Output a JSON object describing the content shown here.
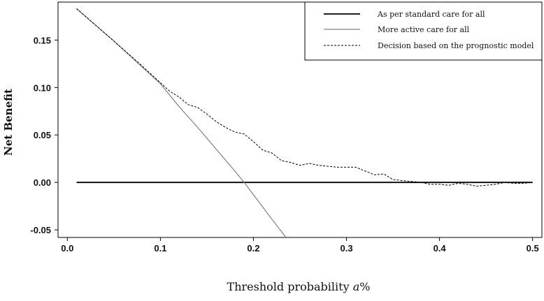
{
  "chart_data": {
    "type": "line",
    "title": "",
    "xlabel": "Threshold probability ",
    "xlabel_italic": "a",
    "xlabel_suffix": "%",
    "ylabel": "Net Benefit",
    "xlim": [
      -0.01,
      0.51
    ],
    "ylim": [
      -0.058,
      0.19
    ],
    "xticks": [
      0.0,
      0.1,
      0.2,
      0.3,
      0.4,
      0.5
    ],
    "xtick_labels": [
      "0.0",
      "0.1",
      "0.2",
      "0.3",
      "0.4",
      "0.5"
    ],
    "yticks": [
      -0.05,
      0.0,
      0.05,
      0.1,
      0.15
    ],
    "ytick_labels": [
      "-0.05",
      "0.00",
      "0.05",
      "0.10",
      "0.15"
    ],
    "grid": false,
    "legend_position": "top-right",
    "series": [
      {
        "name": "As per standard care for all",
        "style": "solid",
        "color": "#000000",
        "x": [
          0.01,
          0.5
        ],
        "y": [
          0.0,
          0.0
        ]
      },
      {
        "name": "More active care for all",
        "style": "solid",
        "color": "#808080",
        "x": [
          0.01,
          0.05,
          0.08,
          0.1,
          0.12,
          0.14,
          0.16,
          0.18,
          0.19,
          0.2,
          0.22,
          0.235
        ],
        "y": [
          0.183,
          0.149,
          0.122,
          0.104,
          0.08,
          0.058,
          0.035,
          0.012,
          0.0,
          -0.013,
          -0.039,
          -0.058
        ]
      },
      {
        "name": "Decision based on the prognostic model",
        "style": "dashed",
        "color": "#000000",
        "x": [
          0.01,
          0.05,
          0.08,
          0.1,
          0.11,
          0.12,
          0.13,
          0.14,
          0.15,
          0.16,
          0.17,
          0.18,
          0.19,
          0.2,
          0.21,
          0.22,
          0.23,
          0.24,
          0.25,
          0.26,
          0.27,
          0.28,
          0.29,
          0.3,
          0.31,
          0.32,
          0.33,
          0.34,
          0.35,
          0.36,
          0.37,
          0.38,
          0.39,
          0.4,
          0.41,
          0.42,
          0.43,
          0.44,
          0.45,
          0.46,
          0.47,
          0.48,
          0.49,
          0.5
        ],
        "y": [
          0.183,
          0.149,
          0.123,
          0.105,
          0.096,
          0.09,
          0.082,
          0.079,
          0.072,
          0.064,
          0.058,
          0.053,
          0.051,
          0.043,
          0.034,
          0.031,
          0.023,
          0.021,
          0.018,
          0.02,
          0.018,
          0.017,
          0.016,
          0.016,
          0.016,
          0.012,
          0.008,
          0.009,
          0.003,
          0.002,
          0.001,
          0.0,
          -0.002,
          -0.002,
          -0.003,
          -0.001,
          -0.002,
          -0.004,
          -0.003,
          -0.002,
          0.0,
          -0.001,
          -0.001,
          0.0
        ]
      }
    ]
  }
}
